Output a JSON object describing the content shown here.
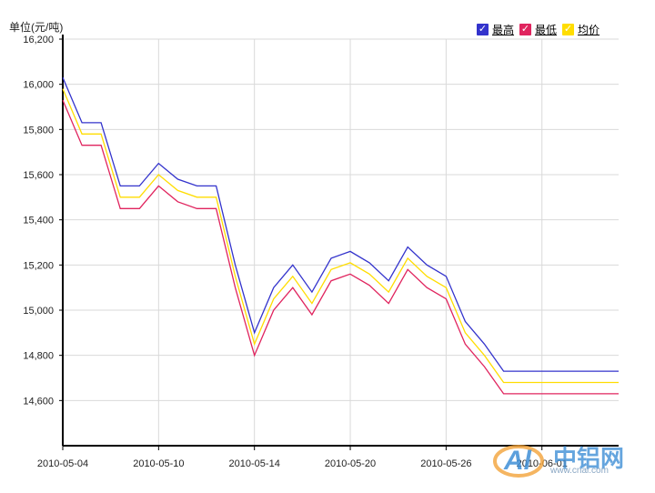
{
  "unit_label": "单位(元/吨)",
  "watermark": {
    "brand": "中铝网",
    "url": "www.cnal.com"
  },
  "colors": {
    "high": "#3333cc",
    "low": "#e0245e",
    "avg": "#ffdd00",
    "grid": "#d9d9d9",
    "axis": "#000000"
  },
  "chart_data": {
    "type": "line",
    "ylabel": "单位(元/吨)",
    "ylim": [
      14400,
      16200
    ],
    "yticks": [
      14600,
      14800,
      15000,
      15200,
      15400,
      15600,
      15800,
      16000,
      16200
    ],
    "ytick_labels": [
      "14,600",
      "14,800",
      "15,000",
      "15,200",
      "15,400",
      "15,600",
      "15,800",
      "16,000",
      "16,200"
    ],
    "xtick_labels": [
      {
        "index": 0,
        "label": "2010-05-04"
      },
      {
        "index": 5,
        "label": "2010-05-10"
      },
      {
        "index": 10,
        "label": "2010-05-14"
      },
      {
        "index": 15,
        "label": "2010-05-20"
      },
      {
        "index": 20,
        "label": "2010-05-26"
      },
      {
        "index": 25,
        "label": "2010-06-01"
      }
    ],
    "point_count": 30,
    "grid": true,
    "legend_position": "top-right",
    "series": [
      {
        "name": "最高",
        "key": "high",
        "values": [
          16030,
          15830,
          15830,
          15550,
          15550,
          15650,
          15580,
          15550,
          15550,
          15200,
          14900,
          15100,
          15200,
          15080,
          15230,
          15260,
          15210,
          15130,
          15280,
          15200,
          15150,
          14950,
          14850,
          14730,
          14730,
          14730,
          14730,
          14730,
          14730,
          14730
        ]
      },
      {
        "name": "最低",
        "key": "low",
        "values": [
          15930,
          15730,
          15730,
          15450,
          15450,
          15550,
          15480,
          15450,
          15450,
          15100,
          14800,
          15000,
          15100,
          14980,
          15130,
          15160,
          15110,
          15030,
          15180,
          15100,
          15050,
          14850,
          14750,
          14630,
          14630,
          14630,
          14630,
          14630,
          14630,
          14630
        ]
      },
      {
        "name": "均价",
        "key": "avg",
        "values": [
          15980,
          15780,
          15780,
          15500,
          15500,
          15600,
          15530,
          15500,
          15500,
          15150,
          14850,
          15050,
          15150,
          15030,
          15180,
          15210,
          15160,
          15080,
          15230,
          15150,
          15100,
          14900,
          14800,
          14680,
          14680,
          14680,
          14680,
          14680,
          14680,
          14680
        ]
      }
    ]
  }
}
